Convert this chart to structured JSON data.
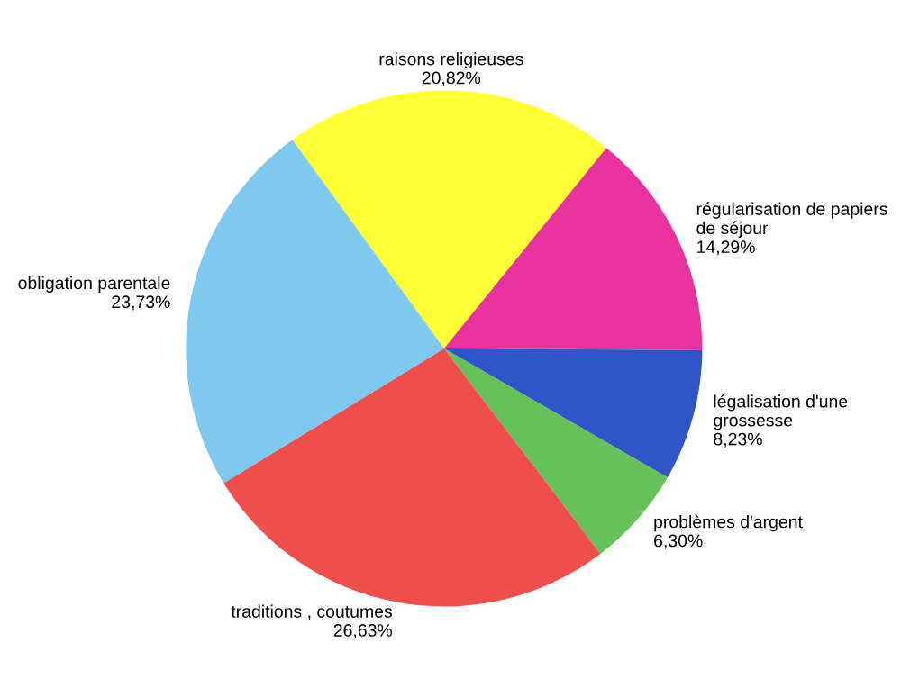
{
  "chart_data": {
    "type": "pie",
    "categories": [
      "raisons religieuses",
      "régularisation de papiers\nde séjour",
      "légalisation d'une\ngrossesse",
      "problèmes d'argent",
      "traditions , coutumes",
      "obligation parentale"
    ],
    "values": [
      20.82,
      14.29,
      8.23,
      6.3,
      26.63,
      23.73
    ],
    "value_labels": [
      "20,82%",
      "14,29%",
      "8,23%",
      "6,30%",
      "26,63%",
      "23,73%"
    ],
    "colors": [
      "#ffff33",
      "#e8339f",
      "#2f55c8",
      "#66c15a",
      "#f04d4d",
      "#7fc8ee"
    ],
    "legend": false
  }
}
